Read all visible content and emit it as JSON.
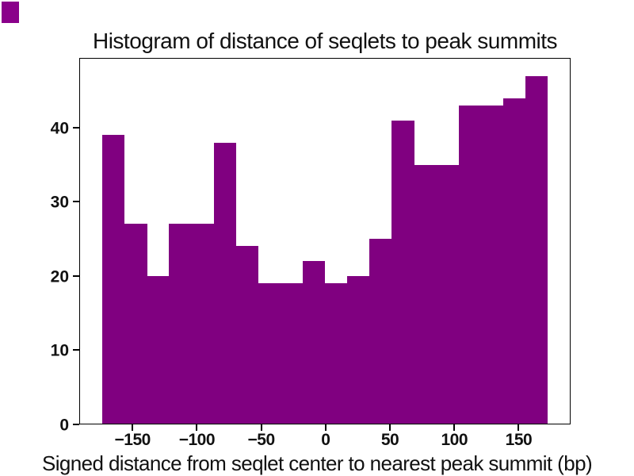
{
  "title": "Histogram of distance of seqlets to peak summits",
  "xlabel": "Signed distance from seqlet center to nearest peak summit (bp)",
  "corner_swatch_color": "#8a008a",
  "chart_data": {
    "type": "bar",
    "subtype": "histogram",
    "title": "Histogram of distance of seqlets to peak summits",
    "xlabel": "Signed distance from seqlet center to nearest peak summit (bp)",
    "ylabel": "",
    "bar_color": "#800080",
    "grid": false,
    "legend": "none",
    "bin_edges": [
      -174.0,
      -156.65,
      -139.3,
      -121.95,
      -104.6,
      -87.25,
      -69.9,
      -52.55,
      -35.2,
      -17.85,
      -0.5,
      16.85,
      34.2,
      51.55,
      68.9,
      86.25,
      103.6,
      120.95,
      138.3,
      155.65,
      173.0
    ],
    "counts": [
      39,
      27,
      20,
      27,
      27,
      38,
      24,
      19,
      19,
      22,
      19,
      20,
      25,
      41,
      35,
      35,
      43,
      43,
      44,
      47
    ],
    "x_ticks": [
      -150,
      -100,
      -50,
      0,
      50,
      100,
      150
    ],
    "x_tick_labels": [
      "−150",
      "−100",
      "−50",
      "0",
      "50",
      "100",
      "150"
    ],
    "y_ticks": [
      0,
      10,
      20,
      30,
      40
    ],
    "y_tick_labels": [
      "0",
      "10",
      "20",
      "30",
      "40"
    ],
    "xlim": [
      -191.35,
      190.35
    ],
    "ylim": [
      0,
      49.35
    ]
  }
}
